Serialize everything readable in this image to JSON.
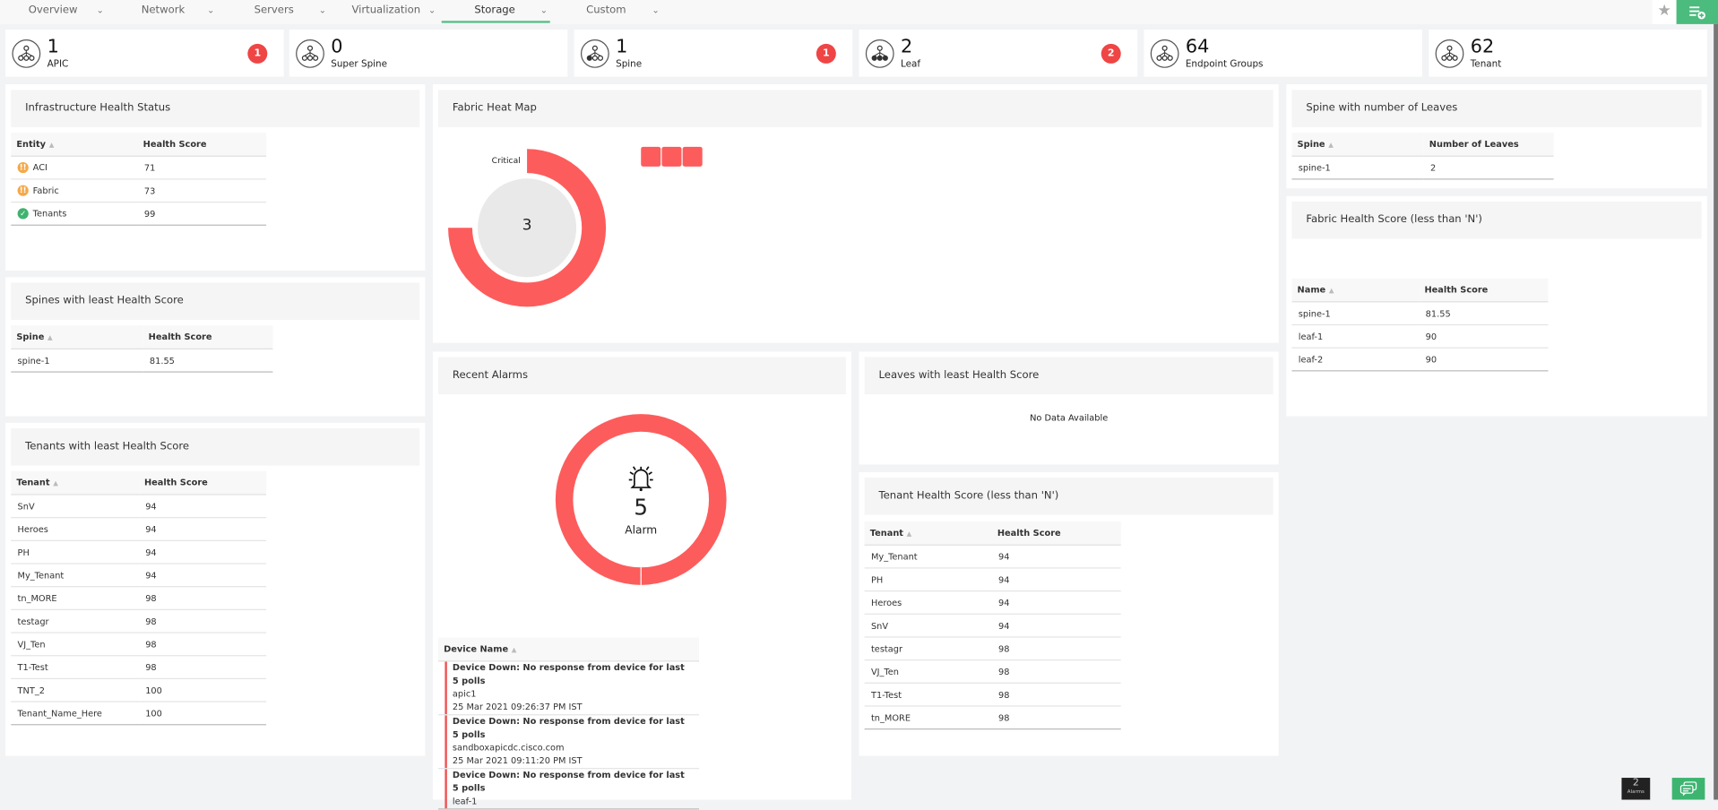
{
  "tabs": [
    {
      "label": "Overview"
    },
    {
      "label": "Network"
    },
    {
      "label": "Servers"
    },
    {
      "label": "Virtualization"
    },
    {
      "label": "Storage",
      "active": true
    },
    {
      "label": "Custom"
    }
  ],
  "summary": [
    {
      "count": "1",
      "label": "APIC",
      "icon": "apic-icon",
      "badge": "1"
    },
    {
      "count": "0",
      "label": "Super Spine",
      "icon": "super-spine-icon",
      "badge": null
    },
    {
      "count": "1",
      "label": "Spine",
      "icon": "spine-icon",
      "badge": "1"
    },
    {
      "count": "2",
      "label": "Leaf",
      "icon": "leaf-icon",
      "badge": "2"
    },
    {
      "count": "64",
      "label": "Endpoint Groups",
      "icon": "endpoint-groups-icon",
      "badge": null
    },
    {
      "count": "62",
      "label": "Tenant",
      "icon": "tenant-icon",
      "badge": null
    }
  ],
  "infra": {
    "title": "Infrastructure Health Status",
    "columns": [
      "Entity",
      "Health Score"
    ],
    "rows": [
      {
        "entity": "ACI",
        "score": "71",
        "status": "warning"
      },
      {
        "entity": "Fabric",
        "score": "73",
        "status": "warning"
      },
      {
        "entity": "Tenants",
        "score": "99",
        "status": "ok"
      }
    ]
  },
  "spines_least": {
    "title": "Spines with least Health Score",
    "columns": [
      "Spine",
      "Health Score"
    ],
    "rows": [
      [
        "spine-1",
        "81.55"
      ]
    ]
  },
  "tenants_least": {
    "title": "Tenants with least Health Score",
    "columns": [
      "Tenant",
      "Health Score"
    ],
    "rows": [
      [
        "SnV",
        "94"
      ],
      [
        "Heroes",
        "94"
      ],
      [
        "PH",
        "94"
      ],
      [
        "My_Tenant",
        "94"
      ],
      [
        "tn_MORE",
        "98"
      ],
      [
        "testagr",
        "98"
      ],
      [
        "VJ_Ten",
        "98"
      ],
      [
        "T1-Test",
        "98"
      ],
      [
        "TNT_2",
        "100"
      ],
      [
        "Tenant_Name_Here",
        "100"
      ]
    ]
  },
  "heatmap": {
    "title": "Fabric Heat Map",
    "legend_label": "Critical",
    "center_value": "3",
    "critical_fraction": 0.75,
    "color": "#fd5c5c",
    "cells": 3
  },
  "alarms": {
    "title": "Recent Alarms",
    "count": "5",
    "label": "Alarm",
    "color": "#fd5c5c",
    "column": "Device Name",
    "rows": [
      {
        "message": "Device Down: No response from device for last 5 polls",
        "device": "apic1",
        "time": "25 Mar 2021 09:26:37 PM IST"
      },
      {
        "message": "Device Down: No response from device for last 5 polls",
        "device": "sandboxapicdc.cisco.com",
        "time": "25 Mar 2021 09:11:20 PM IST"
      },
      {
        "message": "Device Down: No response from device for last 5 polls",
        "device": "leaf-1",
        "time": ""
      }
    ]
  },
  "leaves_least": {
    "title": "Leaves with least Health Score",
    "empty": "No Data Available"
  },
  "tenant_health": {
    "title": "Tenant Health Score (less than 'N')",
    "columns": [
      "Tenant",
      "Health Score"
    ],
    "rows": [
      [
        "My_Tenant",
        "94"
      ],
      [
        "PH",
        "94"
      ],
      [
        "Heroes",
        "94"
      ],
      [
        "SnV",
        "94"
      ],
      [
        "testagr",
        "98"
      ],
      [
        "VJ_Ten",
        "98"
      ],
      [
        "T1-Test",
        "98"
      ],
      [
        "tn_MORE",
        "98"
      ]
    ]
  },
  "spine_leaves": {
    "title": "Spine with number of Leaves",
    "columns": [
      "Spine",
      "Number of Leaves"
    ],
    "rows": [
      [
        "spine-1",
        "2"
      ]
    ]
  },
  "fabric_health": {
    "title": "Fabric Health Score (less than 'N')",
    "columns": [
      "Name",
      "Health Score"
    ],
    "rows": [
      [
        "spine-1",
        "81.55"
      ],
      [
        "leaf-1",
        "90"
      ],
      [
        "leaf-2",
        "90"
      ]
    ]
  },
  "footer": {
    "alarm_count": "2",
    "alarm_label": "Alarms"
  }
}
